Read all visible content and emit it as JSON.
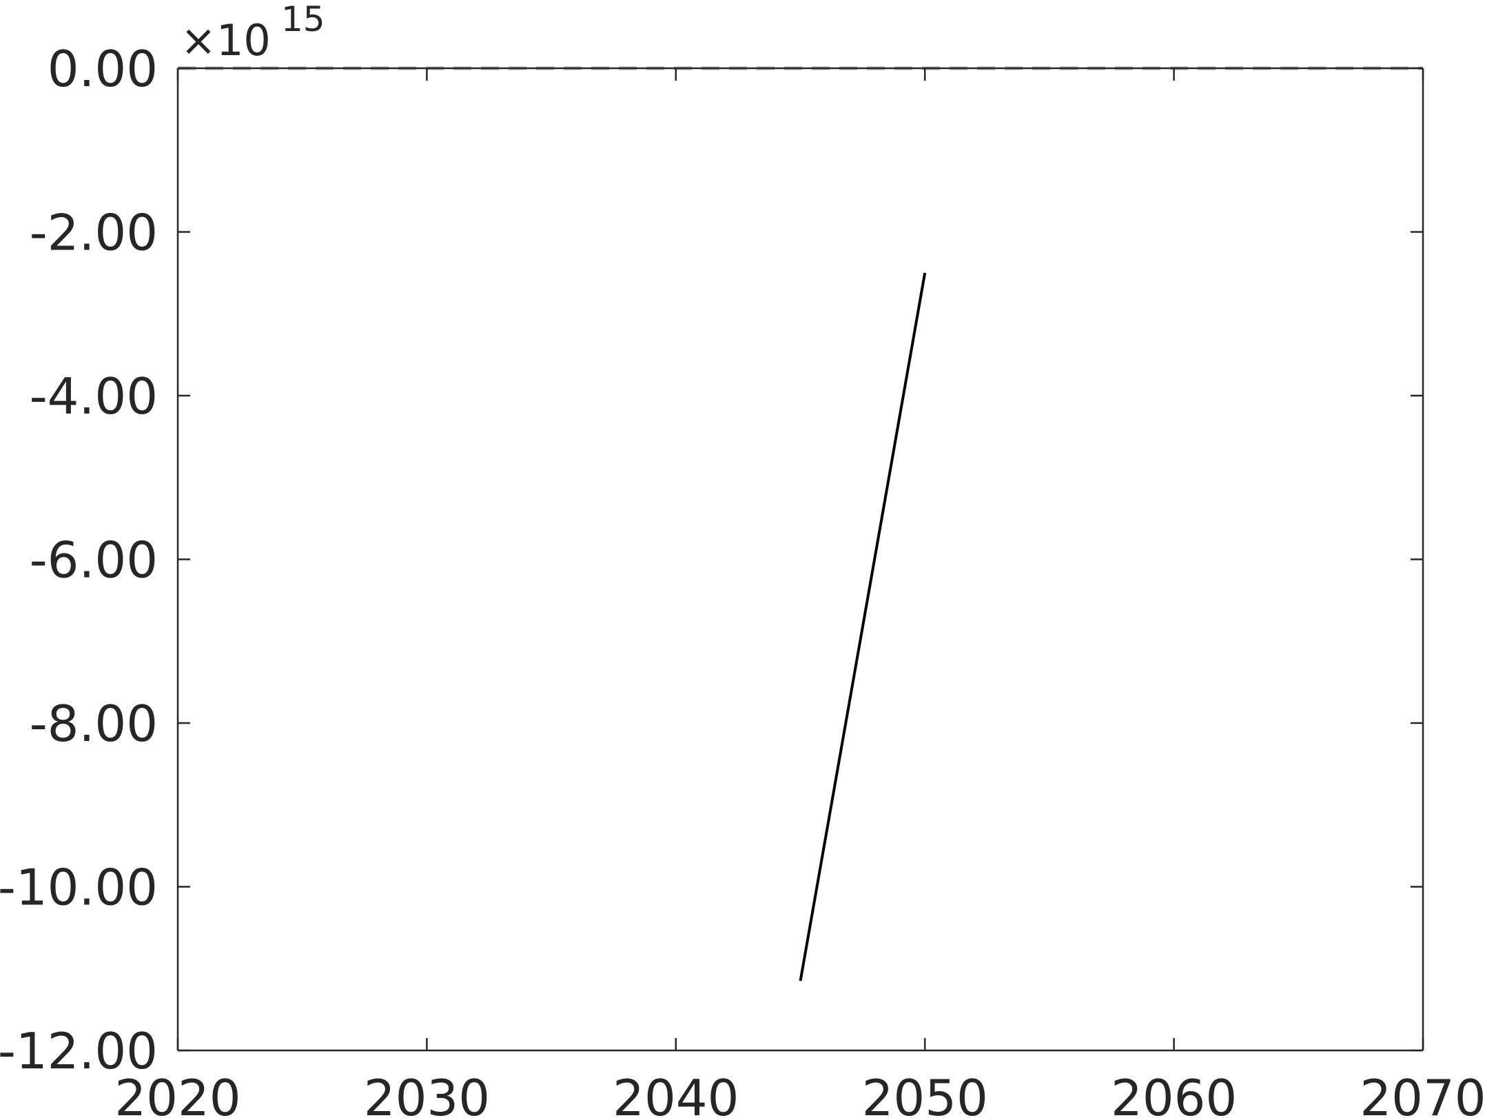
{
  "chart_data": {
    "type": "line",
    "title": "",
    "xlabel": "",
    "ylabel": "",
    "xlim": [
      2020,
      2070
    ],
    "ylim": [
      -12.0,
      0.0
    ],
    "y_exponent": {
      "prefix": "×10",
      "power": "15"
    },
    "x_ticks": [
      {
        "value": 2020,
        "label": "2020"
      },
      {
        "value": 2030,
        "label": "2030"
      },
      {
        "value": 2040,
        "label": "2040"
      },
      {
        "value": 2050,
        "label": "2050"
      },
      {
        "value": 2060,
        "label": "2060"
      },
      {
        "value": 2070,
        "label": "2070"
      }
    ],
    "y_ticks": [
      {
        "value": 0.0,
        "label": "0.00"
      },
      {
        "value": -2.0,
        "label": "-2.00"
      },
      {
        "value": -4.0,
        "label": "-4.00"
      },
      {
        "value": -6.0,
        "label": "-6.00"
      },
      {
        "value": -8.0,
        "label": "-8.00"
      },
      {
        "value": -10.0,
        "label": "-10.00"
      },
      {
        "value": -12.0,
        "label": "-12.00"
      }
    ],
    "grid": false,
    "series": [
      {
        "style": "solid",
        "color": "#000000",
        "x": [
          2045,
          2050
        ],
        "y": [
          -11.15,
          -2.5
        ]
      },
      {
        "style": "dashed",
        "color": "#a6a6a6",
        "x": [
          2020,
          2070
        ],
        "y": [
          0.0,
          0.0
        ]
      }
    ]
  },
  "colors": {
    "axis": "#262626",
    "text": "#262626",
    "background": "#ffffff"
  }
}
